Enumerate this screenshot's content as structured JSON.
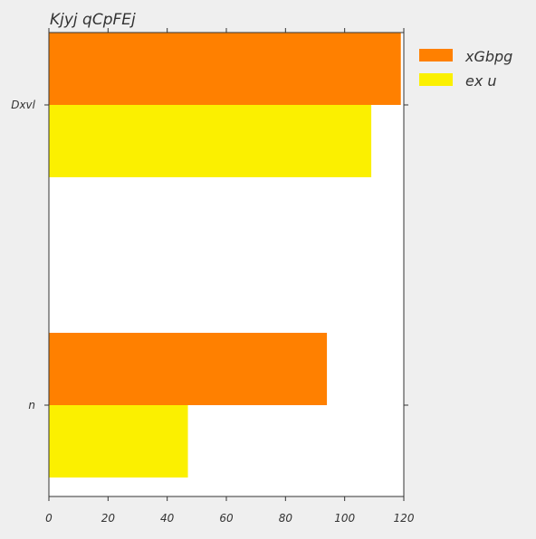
{
  "chart_data": {
    "type": "bar",
    "orientation": "horizontal",
    "title": "Kjyj qCpFEj",
    "xlabel": "",
    "ylabel": "",
    "categories": [
      "Dxvl",
      "n"
    ],
    "series": [
      {
        "name": "xGbpg",
        "color": "#ff8000",
        "values": [
          119,
          94
        ]
      },
      {
        "name": "ex u",
        "color": "#fbf000",
        "values": [
          109,
          47
        ]
      }
    ],
    "xlim": [
      0,
      120
    ],
    "xticks": [
      0,
      20,
      40,
      60,
      80,
      100,
      120
    ],
    "grid": false,
    "legend_position": "outside-top-right"
  }
}
